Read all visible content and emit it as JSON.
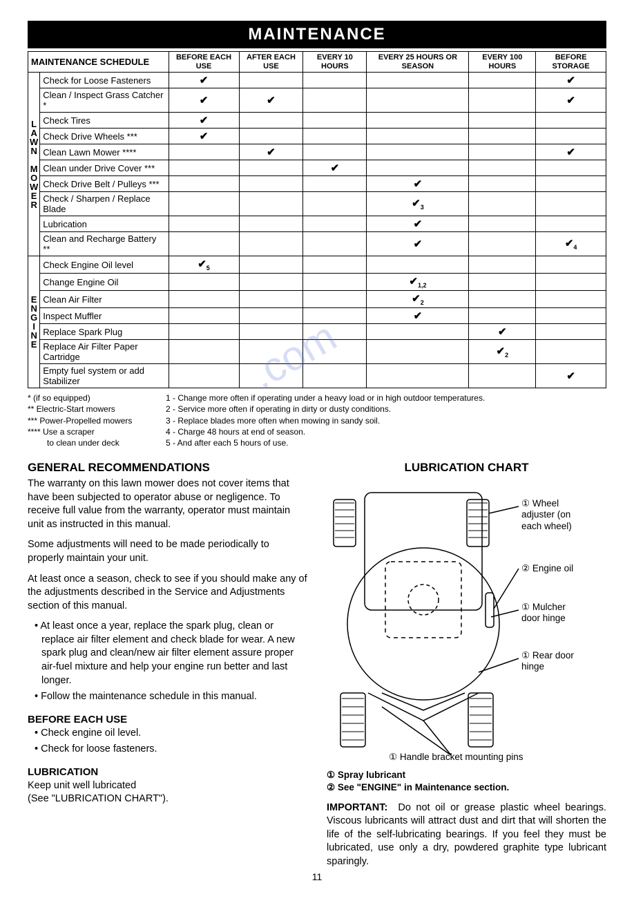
{
  "banner": "MAINTENANCE",
  "schedule": {
    "title": "MAINTENANCE SCHEDULE",
    "columns": [
      "BEFORE EACH USE",
      "AFTER EACH USE",
      "EVERY 10 HOURS",
      "EVERY 25 HOURS OR SEASON",
      "EVERY 100 HOURS",
      "BEFORE STORAGE"
    ],
    "groups": [
      {
        "label": "LAWN MOWER",
        "rows": [
          {
            "task": "Check for Loose Fasteners",
            "marks": [
              "✔",
              "",
              "",
              "",
              "",
              "✔"
            ]
          },
          {
            "task": "Clean / Inspect Grass Catcher *",
            "marks": [
              "✔",
              "✔",
              "",
              "",
              "",
              "✔"
            ]
          },
          {
            "task": "Check Tires",
            "marks": [
              "✔",
              "",
              "",
              "",
              "",
              ""
            ]
          },
          {
            "task": "Check Drive Wheels ***",
            "marks": [
              "✔",
              "",
              "",
              "",
              "",
              ""
            ]
          },
          {
            "task": "Clean Lawn Mower ****",
            "marks": [
              "",
              "✔",
              "",
              "",
              "",
              "✔"
            ]
          },
          {
            "task": "Clean under Drive Cover ***",
            "marks": [
              "",
              "",
              "✔",
              "",
              "",
              ""
            ]
          },
          {
            "task": "Check Drive Belt / Pulleys ***",
            "marks": [
              "",
              "",
              "",
              "✔",
              "",
              ""
            ]
          },
          {
            "task": "Check / Sharpen / Replace Blade",
            "marks": [
              "",
              "",
              "",
              "✔3",
              "",
              ""
            ]
          },
          {
            "task": "Lubrication",
            "marks": [
              "",
              "",
              "",
              "✔",
              "",
              ""
            ]
          },
          {
            "task": "Clean and Recharge Battery **",
            "marks": [
              "",
              "",
              "",
              "✔",
              "",
              "✔4"
            ]
          }
        ]
      },
      {
        "label": "ENGINE",
        "rows": [
          {
            "task": "Check Engine Oil level",
            "marks": [
              "✔5",
              "",
              "",
              "",
              "",
              ""
            ]
          },
          {
            "task": "Change Engine Oil",
            "marks": [
              "",
              "",
              "",
              "✔1,2",
              "",
              ""
            ]
          },
          {
            "task": "Clean Air Filter",
            "marks": [
              "",
              "",
              "",
              "✔2",
              "",
              ""
            ]
          },
          {
            "task": "Inspect Muffler",
            "marks": [
              "",
              "",
              "",
              "✔",
              "",
              ""
            ]
          },
          {
            "task": "Replace Spark Plug",
            "marks": [
              "",
              "",
              "",
              "",
              "✔",
              ""
            ]
          },
          {
            "task": "Replace Air Filter Paper Cartridge",
            "marks": [
              "",
              "",
              "",
              "",
              "✔2",
              ""
            ]
          },
          {
            "task": "Empty fuel system or add Stabilizer",
            "marks": [
              "",
              "",
              "",
              "",
              "",
              "✔"
            ]
          }
        ]
      }
    ]
  },
  "footnotes_left": [
    "* (if so equipped)",
    "** Electric-Start mowers",
    "*** Power-Propelled mowers",
    "**** Use a scraper",
    "to clean under deck"
  ],
  "footnotes_right": [
    "1 - Change more often if operating under a heavy load or in high outdoor temperatures.",
    "2 - Service more often if operating in dirty or dusty conditions.",
    "3 - Replace blades more often when mowing in sandy soil.",
    "4 - Charge 48 hours at end of season.",
    "5 - And after each 5 hours of use."
  ],
  "left_col": {
    "h_general": "GENERAL RECOMMENDATIONS",
    "p1": "The warranty on this lawn mower does not cover items that have been subjected to operator abuse or negligence.  To receive full value from the warranty, operator must maintain unit as instructed in this manual.",
    "p2": "Some adjustments will need to be made periodically to properly maintain your unit.",
    "p3": "At least once a season, check to see if you should make any of the adjustments described in the Service and Adjustments section of this manual.",
    "b1": "At least once a year, replace the spark plug, clean or replace air filter element and check blade for wear.  A new spark plug and clean/new air filter element assure proper air-fuel mixture and help your engine run better and last longer.",
    "b2": "Follow the maintenance schedule in this manual.",
    "h_before": "BEFORE EACH USE",
    "b3": "Check engine oil level.",
    "b4": "Check for loose fasteners.",
    "h_lub": "LUBRICATION",
    "p4": "Keep unit well lubricated",
    "p5": "(See \"LUBRICATION CHART\")."
  },
  "right_col": {
    "h_chart": "LUBRICATION CHART",
    "callouts": {
      "wheel_adj_n": "①",
      "wheel_adj": "Wheel adjuster (on each wheel)",
      "engine_oil_n": "②",
      "engine_oil": "Engine oil",
      "mulcher_n": "①",
      "mulcher": "Mulcher door hinge",
      "rear_n": "①",
      "rear": "Rear door hinge",
      "handle_n": "①",
      "handle": "Handle bracket mounting pins"
    },
    "legend1_n": "①",
    "legend1": "Spray lubricant",
    "legend2_n": "②",
    "legend2": "See \"ENGINE\" in Maintenance section.",
    "important_label": "IMPORTANT:",
    "important": "Do not oil or grease plastic wheel bearings.  Viscous lubricants will attract dust and dirt that will shorten the life of the self-lubricating bearings.  If you feel they must be lubricated, use only a dry, powdered graphite type lubricant sparingly."
  },
  "pagenum": "11",
  "colors": {
    "banner_bg": "#000000",
    "banner_fg": "#ffffff",
    "border": "#000000",
    "watermark": "rgba(100,120,220,0.25)"
  }
}
